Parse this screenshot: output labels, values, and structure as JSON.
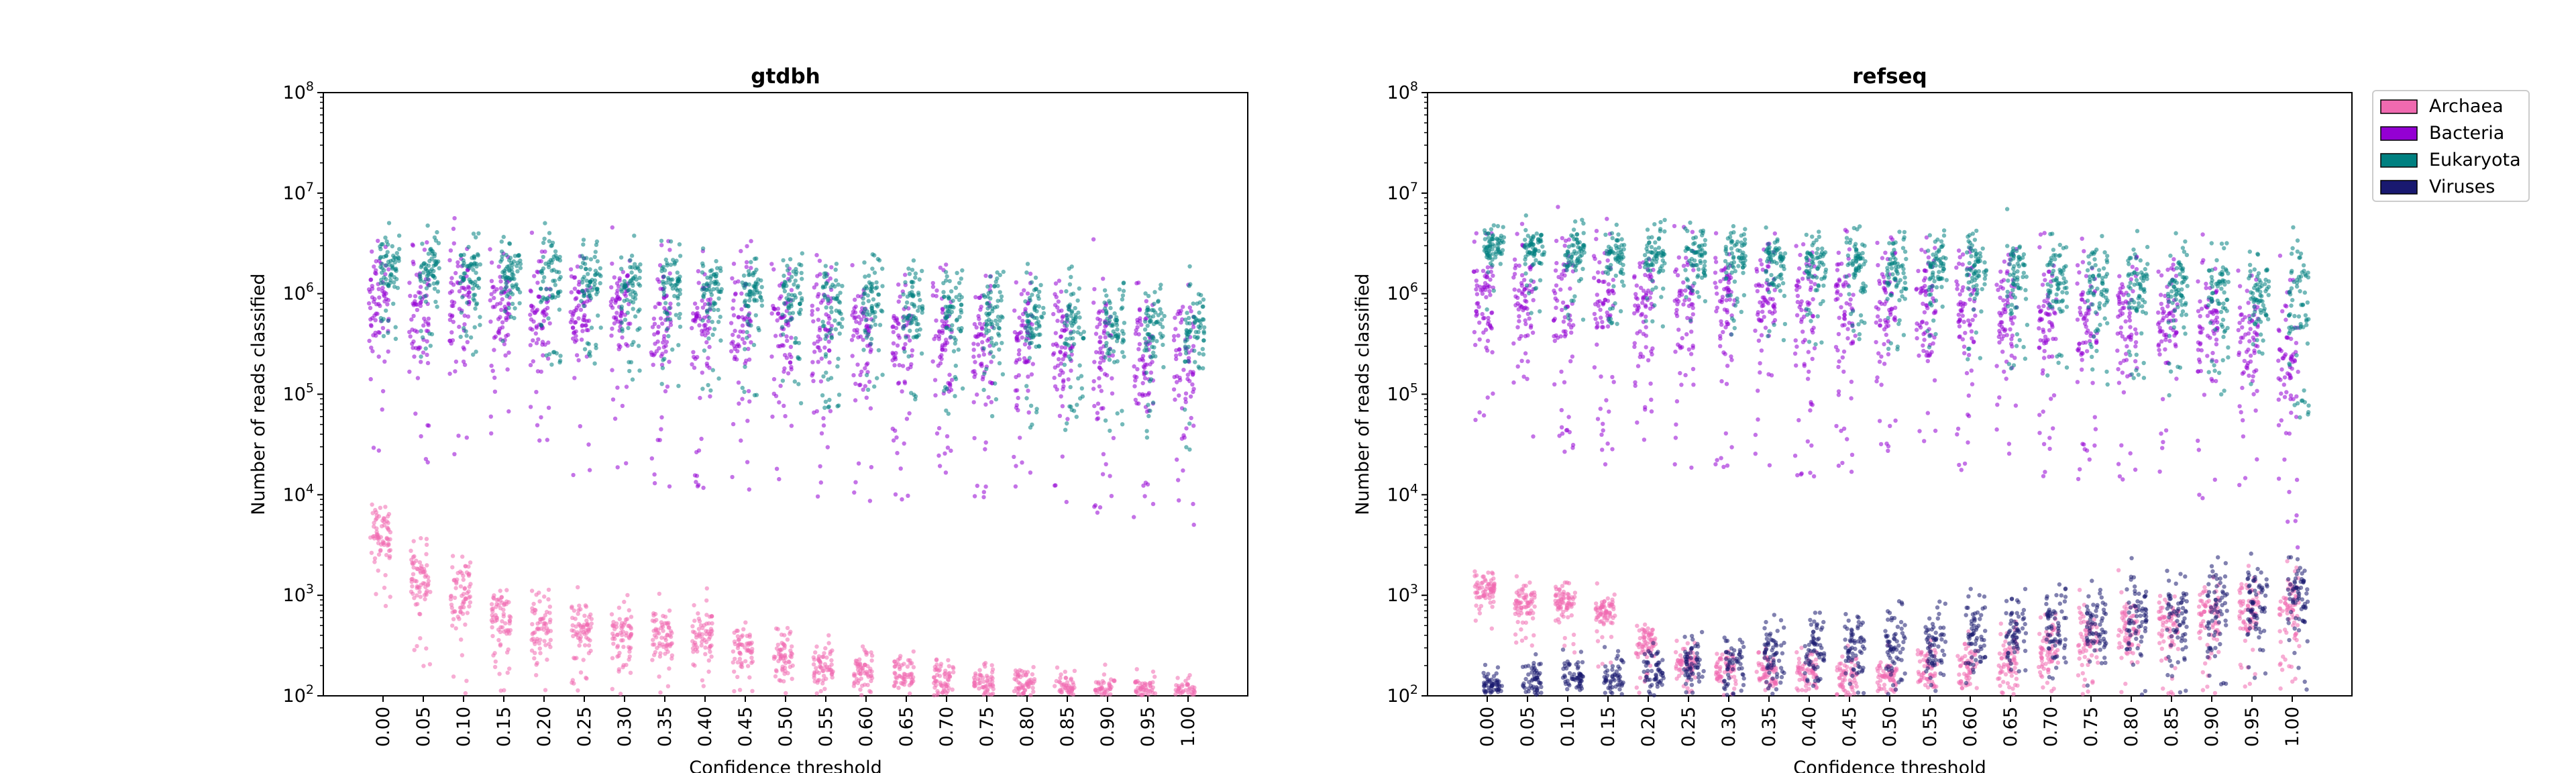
{
  "legend": {
    "placement": "outside-right",
    "items": [
      {
        "label": "Archaea",
        "color": "#f06ab0"
      },
      {
        "label": "Bacteria",
        "color": "#9400d3"
      },
      {
        "label": "Eukaryota",
        "color": "#008080"
      },
      {
        "label": "Viruses",
        "color": "#191970"
      }
    ]
  },
  "chart_data": [
    {
      "type": "scatter",
      "style": "strip (jittered points)",
      "title": "gtdbh",
      "xlabel": "Confidence threshold",
      "ylabel": "Number of reads classified",
      "yscale": "log",
      "ylim": [
        100,
        100000000
      ],
      "yticks": [
        "10",
        "10",
        "10",
        "10",
        "10",
        "10",
        "10"
      ],
      "ytick_exponents": [
        "2",
        "3",
        "4",
        "5",
        "6",
        "7",
        "8"
      ],
      "categories": [
        "0.00",
        "0.05",
        "0.10",
        "0.15",
        "0.20",
        "0.25",
        "0.30",
        "0.35",
        "0.40",
        "0.45",
        "0.50",
        "0.55",
        "0.60",
        "0.65",
        "0.70",
        "0.75",
        "0.80",
        "0.85",
        "0.90",
        "0.95",
        "1.00"
      ],
      "grid": false,
      "series": [
        {
          "name": "Archaea",
          "approx_median": [
            4000,
            1500,
            1000,
            600,
            500,
            500,
            450,
            400,
            400,
            300,
            250,
            200,
            180,
            160,
            150,
            140,
            130,
            120,
            110,
            110,
            110
          ],
          "approx_max": [
            20000,
            8000,
            8000,
            3000,
            2500,
            2000,
            2000,
            2000,
            2000,
            1500,
            1000,
            800,
            600,
            500,
            500,
            400,
            300,
            300,
            250,
            250,
            250
          ]
        },
        {
          "name": "Bacteria",
          "approx_median": [
            1000000,
            900000,
            900000,
            800000,
            800000,
            700000,
            700000,
            600000,
            600000,
            550000,
            500000,
            450000,
            420000,
            400000,
            380000,
            350000,
            330000,
            300000,
            280000,
            260000,
            250000
          ],
          "approx_max": [
            20000000,
            20000000,
            20000000,
            18000000,
            17000000,
            16000000,
            16000000,
            15000000,
            15000000,
            14000000,
            12000000,
            11000000,
            10000000,
            9000000,
            8500000,
            8000000,
            7500000,
            7000000,
            6500000,
            6000000,
            6000000
          ]
        },
        {
          "name": "Eukaryota",
          "approx_median": [
            2000000,
            1800000,
            1700000,
            1600000,
            1500000,
            1400000,
            1300000,
            1200000,
            1100000,
            1000000,
            950000,
            900000,
            850000,
            800000,
            750000,
            700000,
            650000,
            600000,
            550000,
            500000,
            450000
          ],
          "approx_max": [
            10000000,
            10000000,
            10000000,
            9000000,
            9000000,
            8500000,
            8000000,
            8000000,
            7500000,
            7000000,
            7000000,
            7000000,
            6500000,
            6500000,
            6000000,
            6000000,
            6000000,
            5500000,
            5000000,
            5000000,
            5000000
          ]
        },
        {
          "name": "Viruses",
          "approx_median": [],
          "approx_max": []
        }
      ]
    },
    {
      "type": "scatter",
      "style": "strip (jittered points)",
      "title": "refseq",
      "xlabel": "Confidence threshold",
      "ylabel": "Number of reads classified",
      "yscale": "log",
      "ylim": [
        100,
        100000000
      ],
      "yticks": [
        "10",
        "10",
        "10",
        "10",
        "10",
        "10",
        "10"
      ],
      "ytick_exponents": [
        "2",
        "3",
        "4",
        "5",
        "6",
        "7",
        "8"
      ],
      "categories": [
        "0.00",
        "0.05",
        "0.10",
        "0.15",
        "0.20",
        "0.25",
        "0.30",
        "0.35",
        "0.40",
        "0.45",
        "0.50",
        "0.55",
        "0.60",
        "0.65",
        "0.70",
        "0.75",
        "0.80",
        "0.85",
        "0.90",
        "0.95",
        "1.00"
      ],
      "grid": false,
      "series": [
        {
          "name": "Archaea",
          "approx_median": [
            1200,
            900,
            900,
            700,
            350,
            220,
            200,
            180,
            170,
            160,
            160,
            170,
            200,
            230,
            280,
            350,
            450,
            550,
            650,
            750,
            850
          ],
          "approx_max": [
            3000,
            2500,
            2500,
            2000,
            1000,
            500,
            500,
            500,
            500,
            500,
            600,
            700,
            1000,
            1500,
            1500,
            2000,
            2500,
            3000,
            3500,
            4000,
            4500
          ]
        },
        {
          "name": "Bacteria",
          "approx_median": [
            900000,
            900000,
            900000,
            900000,
            850000,
            850000,
            850000,
            850000,
            800000,
            800000,
            800000,
            800000,
            800000,
            750000,
            750000,
            700000,
            650000,
            600000,
            500000,
            400000,
            300000
          ],
          "approx_max": [
            20000000,
            20000000,
            20000000,
            20000000,
            20000000,
            20000000,
            20000000,
            20000000,
            20000000,
            20000000,
            20000000,
            20000000,
            20000000,
            20000000,
            20000000,
            19000000,
            18000000,
            17000000,
            16000000,
            15000000,
            15000000
          ]
        },
        {
          "name": "Eukaryota",
          "approx_median": [
            3000000,
            2800000,
            2700000,
            2600000,
            2500000,
            2400000,
            2300000,
            2200000,
            2100000,
            2000000,
            1900000,
            1800000,
            1700000,
            1600000,
            1500000,
            1400000,
            1300000,
            1200000,
            1100000,
            1000000,
            900000
          ],
          "approx_max": [
            10000000,
            10000000,
            10000000,
            10000000,
            10000000,
            10000000,
            10000000,
            10000000,
            10000000,
            10000000,
            10000000,
            10000000,
            10000000,
            10000000,
            10000000,
            10000000,
            10000000,
            10000000,
            10000000,
            10000000,
            10000000
          ]
        },
        {
          "name": "Viruses",
          "approx_median": [
            130,
            140,
            150,
            160,
            180,
            200,
            220,
            250,
            280,
            300,
            320,
            350,
            400,
            450,
            500,
            550,
            600,
            700,
            800,
            900,
            1000
          ],
          "approx_max": [
            300,
            400,
            500,
            600,
            800,
            1000,
            1200,
            1500,
            1800,
            2000,
            2500,
            3000,
            3500,
            4000,
            4500,
            5000,
            6000,
            7000,
            8000,
            9000,
            10000
          ]
        }
      ]
    }
  ]
}
